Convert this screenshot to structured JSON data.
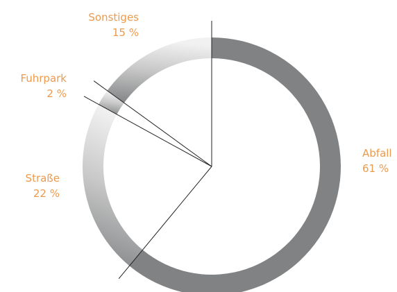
{
  "chart_data": {
    "type": "pie",
    "title": "",
    "slices": [
      {
        "label": "Abfall",
        "value": 61,
        "value_label": "61 %"
      },
      {
        "label": "Straße",
        "value": 22,
        "value_label": "22 %"
      },
      {
        "label": "Fuhrpark",
        "value": 2,
        "value_label": "2 %"
      },
      {
        "label": "Sonstiges",
        "value": 15,
        "value_label": "15 %"
      }
    ],
    "style": "donut-ring",
    "start_angle": "12 o'clock",
    "direction": "clockwise",
    "colors": {
      "ring_dark": "#808284",
      "ring_light": "#ececec",
      "line": "#222222",
      "label": "#ec9a4d"
    }
  }
}
